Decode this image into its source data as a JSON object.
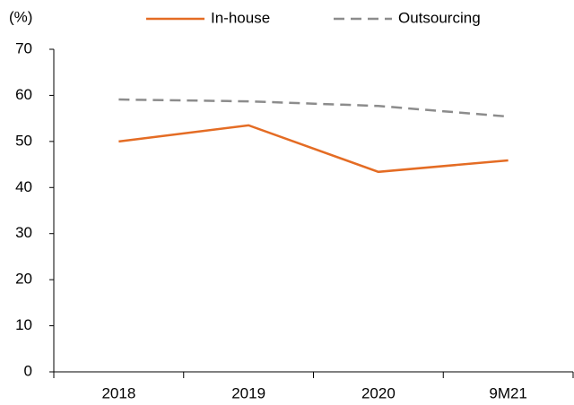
{
  "chart_data": {
    "type": "line",
    "y_label": "(%)",
    "categories": [
      "2018",
      "2019",
      "2020",
      "9M21"
    ],
    "series": [
      {
        "name": "In-house",
        "color": "#e46c24",
        "dash": false,
        "values": [
          50.0,
          53.5,
          43.4,
          45.9
        ]
      },
      {
        "name": "Outsourcing",
        "color": "#8c8c8c",
        "dash": true,
        "values": [
          59.1,
          58.7,
          57.7,
          55.4
        ]
      }
    ],
    "ylim": [
      0,
      70
    ],
    "yticks": [
      0,
      10,
      20,
      30,
      40,
      50,
      60,
      70
    ],
    "grid": false,
    "legend": "top"
  }
}
